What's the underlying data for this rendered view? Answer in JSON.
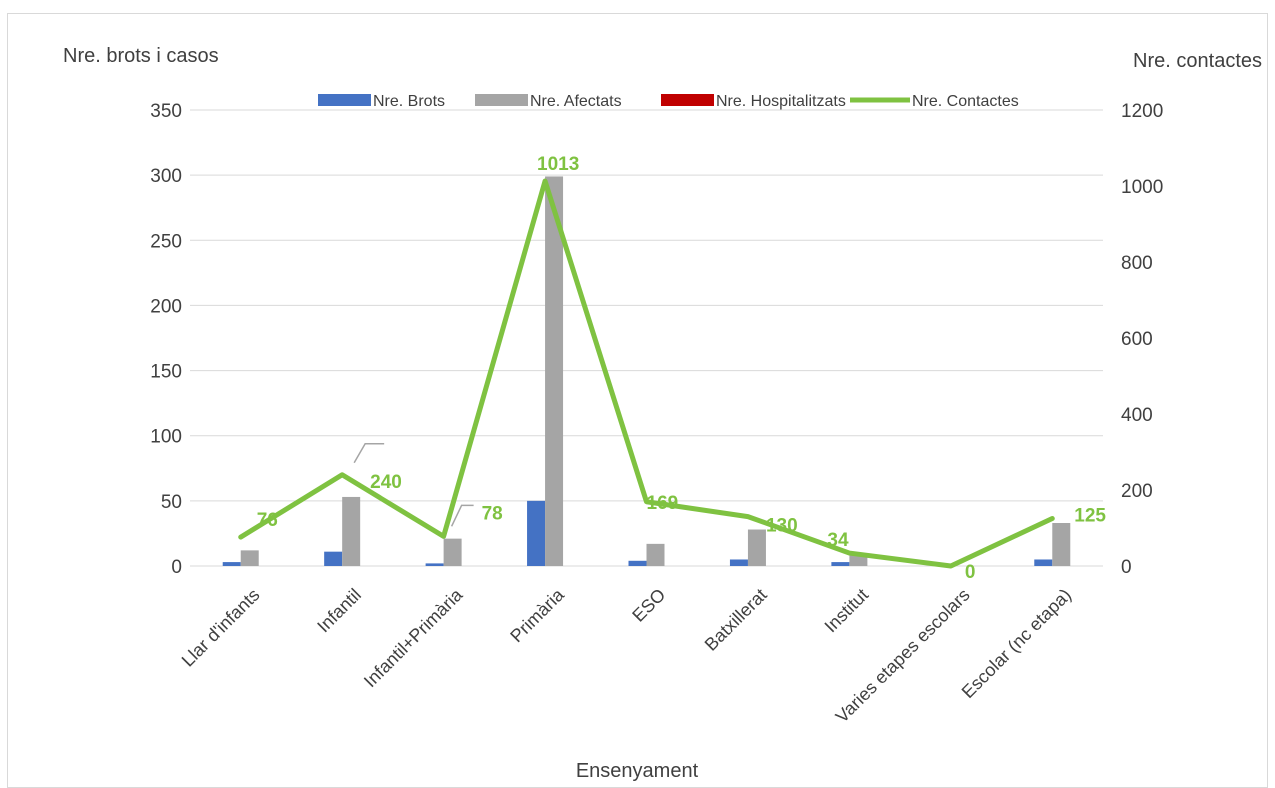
{
  "chart_data": {
    "type": "bar",
    "xlabel": "Ensenyament",
    "ylabel_left": "Nre. brots i casos",
    "ylabel_right": "Nre. contactes",
    "categories": [
      "Llar d'infants",
      "Infantil",
      "Infantil+Primària",
      "Primària",
      "ESO",
      "Batxillerat",
      "Institut",
      "Varies etapes escolars",
      "Escolar (nc etapa)"
    ],
    "ylim_left": [
      0,
      350
    ],
    "yticks_left": [
      "0",
      "50",
      "100",
      "150",
      "200",
      "250",
      "300",
      "350"
    ],
    "ylim_right": [
      0,
      1200
    ],
    "yticks_right": [
      "0",
      "200",
      "400",
      "600",
      "800",
      "1000",
      "1200"
    ],
    "grid": true,
    "legend_position": "top",
    "series": [
      {
        "name": "Nre. Brots",
        "type": "bar",
        "axis": "left",
        "color": "#4472c4",
        "values": [
          3,
          11,
          2,
          50,
          4,
          5,
          3,
          0,
          5
        ]
      },
      {
        "name": "Nre. Afectats",
        "type": "bar",
        "axis": "left",
        "color": "#a5a5a5",
        "values": [
          12,
          53,
          21,
          299,
          17,
          28,
          9,
          0,
          33
        ]
      },
      {
        "name": "Nre. Hospitalitzats",
        "type": "bar",
        "axis": "left",
        "color": "#c00000",
        "values": [
          0,
          0,
          0,
          0,
          0,
          0,
          0,
          0,
          0
        ]
      },
      {
        "name": "Nre.  Contactes",
        "type": "line",
        "axis": "right",
        "color": "#7fc241",
        "values": [
          76,
          240,
          78,
          1013,
          169,
          130,
          34,
          0,
          125
        ]
      }
    ],
    "data_labels": [
      "76",
      "240",
      "78",
      "1013",
      "169",
      "130",
      "34",
      "0",
      "125"
    ]
  }
}
